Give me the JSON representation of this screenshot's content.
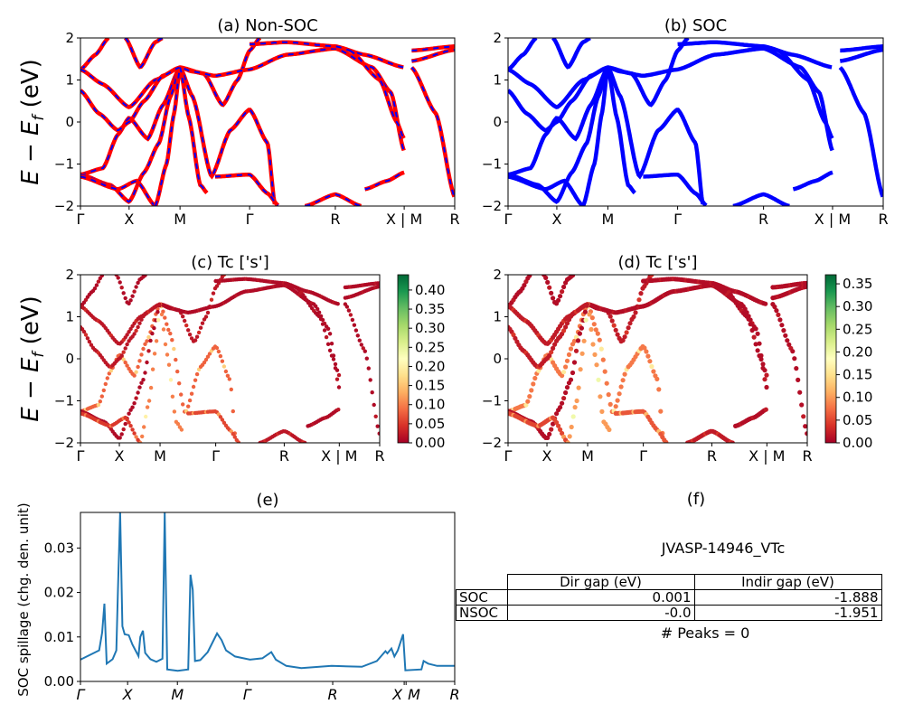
{
  "chart_data": [
    {
      "id": "a",
      "type": "line",
      "title": "(a) Non-SOC",
      "ylabel_parts": [
        "E − E",
        "f",
        " (eV)"
      ],
      "ylim": [
        -2,
        2
      ],
      "yticks": [
        "−2",
        "−1",
        "0",
        "1",
        "2"
      ],
      "xtick_labels": [
        "Γ",
        "X",
        "M",
        "Γ",
        "R",
        "X | M",
        "R"
      ],
      "series_colors": [
        "#ff0000",
        "#0000ff"
      ],
      "style": "red solid with blue dashed overlay"
    },
    {
      "id": "b",
      "type": "line",
      "title": "(b) SOC",
      "ylim": [
        -2,
        2
      ],
      "yticks": [
        "−2",
        "−1",
        "0",
        "1",
        "2"
      ],
      "xtick_labels": [
        "Γ",
        "X",
        "M",
        "Γ",
        "R",
        "X | M",
        "R"
      ],
      "series_colors": [
        "#0000ff"
      ]
    },
    {
      "id": "c",
      "type": "scatter",
      "title": "(c)  Tc ['s']",
      "ylabel_parts": [
        "E − E",
        "f",
        " (eV)"
      ],
      "ylim": [
        -2,
        2
      ],
      "yticks": [
        "−2",
        "−1",
        "0",
        "1",
        "2"
      ],
      "xtick_labels": [
        "Γ",
        "X",
        "M",
        "Γ",
        "R",
        "X | M",
        "R"
      ],
      "colorbar": {
        "colormap": "RdYlGn",
        "range": [
          0,
          0.44
        ],
        "ticks": [
          "0.00",
          "0.05",
          "0.10",
          "0.15",
          "0.20",
          "0.25",
          "0.30",
          "0.35",
          "0.40"
        ]
      }
    },
    {
      "id": "d",
      "type": "scatter",
      "title": "(d) Tc ['s']",
      "ylim": [
        -2,
        2
      ],
      "yticks": [
        "−2",
        "−1",
        "0",
        "1",
        "2"
      ],
      "xtick_labels": [
        "Γ",
        "X",
        "M",
        "Γ",
        "R",
        "X | M",
        "R"
      ],
      "colorbar": {
        "colormap": "RdYlGn",
        "range": [
          0,
          0.37
        ],
        "ticks": [
          "0.00",
          "0.05",
          "0.10",
          "0.15",
          "0.20",
          "0.25",
          "0.30",
          "0.35"
        ]
      }
    },
    {
      "id": "e",
      "type": "line",
      "title": "(e)",
      "ylabel": "SOC spillage (chg. den. unit)",
      "ylim": [
        0,
        0.038
      ],
      "yticks": [
        "0.00",
        "0.01",
        "0.02",
        "0.03"
      ],
      "xtick_labels": [
        "Γ",
        "X",
        "M",
        "Γ",
        "R",
        "X",
        "M",
        "R"
      ],
      "color": "#1f77b4",
      "x": [
        0,
        0.05,
        0.058,
        0.064,
        0.07,
        0.086,
        0.096,
        0.1,
        0.106,
        0.112,
        0.118,
        0.129,
        0.139,
        0.155,
        0.16,
        0.167,
        0.173,
        0.187,
        0.203,
        0.219,
        0.225,
        0.232,
        0.26,
        0.288,
        0.294,
        0.3,
        0.306,
        0.32,
        0.34,
        0.365,
        0.377,
        0.389,
        0.413,
        0.453,
        0.486,
        0.51,
        0.522,
        0.55,
        0.59,
        0.671,
        0.752,
        0.792,
        0.815,
        0.82,
        0.831,
        0.839,
        0.848,
        0.862,
        0.868,
        0.911,
        0.917,
        0.929,
        0.953,
        1
      ],
      "y": [
        0.0049,
        0.007,
        0.011,
        0.0175,
        0.004,
        0.005,
        0.007,
        0.02,
        0.038,
        0.0124,
        0.0106,
        0.0104,
        0.0083,
        0.0057,
        0.01,
        0.0114,
        0.0064,
        0.005,
        0.0044,
        0.0051,
        0.038,
        0.0027,
        0.0024,
        0.0027,
        0.024,
        0.0206,
        0.0046,
        0.0048,
        0.0066,
        0.0108,
        0.0093,
        0.007,
        0.0056,
        0.0049,
        0.0052,
        0.0066,
        0.0049,
        0.0035,
        0.003,
        0.0035,
        0.0033,
        0.0046,
        0.0068,
        0.0063,
        0.0074,
        0.0056,
        0.007,
        0.0106,
        0.0025,
        0.0027,
        0.0046,
        0.004,
        0.0035,
        0.0035
      ]
    }
  ],
  "bands": [
    {
      "pts": [
        [
          0,
          1.25
        ],
        [
          0.04,
          1.6
        ],
        [
          0.075,
          2
        ]
      ],
      "w": 0.01
    },
    {
      "pts": [
        [
          0,
          1.25
        ],
        [
          0.06,
          0.9
        ],
        [
          0.13,
          0.35
        ],
        [
          0.2,
          1.0
        ],
        [
          0.266,
          1.3
        ],
        [
          0.33,
          1.15
        ],
        [
          0.38,
          0.4
        ],
        [
          0.42,
          1.0
        ],
        [
          0.452,
          1.7
        ],
        [
          0.48,
          2
        ]
      ],
      "w": 0.02
    },
    {
      "pts": [
        [
          0,
          -1.25
        ],
        [
          0.06,
          -1.1
        ],
        [
          0.1,
          -0.3
        ],
        [
          0.13,
          0.1
        ],
        [
          0.18,
          -0.4
        ],
        [
          0.22,
          0.4
        ],
        [
          0.266,
          1.3
        ],
        [
          0.3,
          0.6
        ],
        [
          0.35,
          -1.3
        ],
        [
          0.4,
          -0.2
        ],
        [
          0.452,
          0.3
        ],
        [
          0.5,
          -0.5
        ],
        [
          0.52,
          -2
        ]
      ],
      "w": 0.08
    },
    {
      "pts": [
        [
          0,
          -1.25
        ],
        [
          0.08,
          -1.5
        ],
        [
          0.13,
          -1.9
        ],
        [
          0.17,
          -1.2
        ],
        [
          0.21,
          -0.5
        ],
        [
          0.24,
          0.6
        ],
        [
          0.266,
          1.3
        ],
        [
          0.3,
          1.2
        ],
        [
          0.36,
          1.1
        ],
        [
          0.452,
          1.25
        ],
        [
          0.55,
          1.6
        ],
        [
          0.681,
          1.75
        ],
        [
          0.78,
          1.3
        ],
        [
          0.83,
          0.7
        ],
        [
          0.865,
          -0.7
        ]
      ],
      "w": 0.01
    },
    {
      "pts": [
        [
          0,
          -1.3
        ],
        [
          0.1,
          -1.6
        ],
        [
          0.15,
          -1.4
        ],
        [
          0.2,
          -2
        ]
      ],
      "w": 0.05
    },
    {
      "pts": [
        [
          0.2,
          -2
        ],
        [
          0.23,
          -1.0
        ],
        [
          0.25,
          0.2
        ],
        [
          0.266,
          1.3
        ],
        [
          0.29,
          0.1
        ],
        [
          0.32,
          -1.5
        ],
        [
          0.34,
          -1.7
        ]
      ],
      "w": 0.1
    },
    {
      "pts": [
        [
          0.452,
          1.85
        ],
        [
          0.55,
          1.9
        ],
        [
          0.681,
          1.8
        ],
        [
          0.76,
          1.6
        ],
        [
          0.865,
          1.3
        ]
      ],
      "w": 0.01
    },
    {
      "pts": [
        [
          0.885,
          1.7
        ],
        [
          1,
          1.8
        ]
      ],
      "w": 0.01
    },
    {
      "pts": [
        [
          0.885,
          1.45
        ],
        [
          1,
          1.72
        ]
      ],
      "w": 0.01
    },
    {
      "pts": [
        [
          0.885,
          1.3
        ],
        [
          0.95,
          0.2
        ],
        [
          1,
          -1.8
        ]
      ],
      "w": 0.01
    },
    {
      "pts": [
        [
          0.6,
          -2
        ],
        [
          0.681,
          -1.72
        ],
        [
          0.75,
          -2
        ]
      ],
      "w": 0.02
    },
    {
      "pts": [
        [
          0.72,
          1.7
        ],
        [
          0.8,
          1.0
        ],
        [
          0.845,
          0.0
        ],
        [
          0.865,
          -0.4
        ]
      ],
      "w": 0.01
    },
    {
      "pts": [
        [
          0.76,
          -1.6
        ],
        [
          0.82,
          -1.4
        ],
        [
          0.865,
          -1.2
        ]
      ],
      "w": 0.01
    },
    {
      "pts": [
        [
          0.36,
          -1.3
        ],
        [
          0.452,
          -1.25
        ],
        [
          0.5,
          -1.7
        ],
        [
          0.53,
          -2
        ]
      ],
      "w": 0.06
    },
    {
      "pts": [
        [
          0,
          0.75
        ],
        [
          0.05,
          0.2
        ],
        [
          0.1,
          -0.2
        ],
        [
          0.13,
          0.0
        ],
        [
          0.17,
          0.5
        ],
        [
          0.22,
          1.1
        ],
        [
          0.266,
          1.3
        ]
      ],
      "w": 0.02
    },
    {
      "pts": [
        [
          0.12,
          2
        ],
        [
          0.16,
          1.3
        ],
        [
          0.2,
          1.9
        ],
        [
          0.22,
          2
        ]
      ],
      "w": 0.01
    }
  ],
  "table": {
    "title": "JVASP-14946_VTc",
    "panel_title": "(f)",
    "columns": [
      "",
      "Dir gap (eV)",
      "Indir gap (eV)"
    ],
    "rows": [
      [
        "SOC",
        "0.001",
        "-1.888"
      ],
      [
        "NSOC",
        "-0.0",
        "-1.951"
      ]
    ],
    "footer": "# Peaks = 0"
  }
}
